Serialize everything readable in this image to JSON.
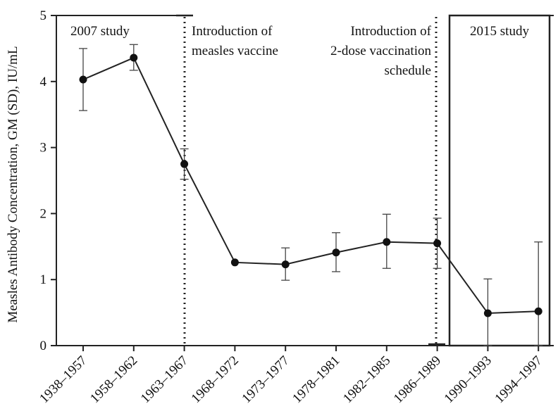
{
  "chart_data": {
    "type": "line",
    "ylabel": "Measles Antibody Concentration, GM (SD), IU/mL",
    "xlabel": "",
    "ylim": [
      0,
      5
    ],
    "yticks": [
      "0",
      "1",
      "2",
      "3",
      "4",
      "5"
    ],
    "categories": [
      "1938–1957",
      "1958–1962",
      "1963–1967",
      "1968–1972",
      "1973–1977",
      "1978–1981",
      "1982–1985",
      "1986–1989",
      "1990–1993",
      "1994–1997"
    ],
    "series": [
      {
        "values": [
          4.03,
          4.36,
          2.75,
          1.26,
          1.23,
          1.41,
          1.57,
          1.55,
          0.49,
          0.52
        ],
        "err_low": [
          3.56,
          4.17,
          2.52,
          1.26,
          0.99,
          1.12,
          1.17,
          1.17,
          0.0,
          0.0
        ],
        "err_high": [
          4.5,
          4.56,
          2.98,
          1.26,
          1.48,
          1.71,
          1.99,
          1.93,
          1.01,
          1.57
        ]
      }
    ],
    "annotations": {
      "study_2007": "2007 study",
      "vaccine_line1": "Introduction of",
      "vaccine_line2": "measles vaccine",
      "twodose_line1": "Introduction of",
      "twodose_line2": "2-dose vaccination",
      "twodose_line3": "schedule",
      "study_2015": "2015 study"
    },
    "grid": false,
    "legend": "none",
    "line_color": "#222222"
  }
}
